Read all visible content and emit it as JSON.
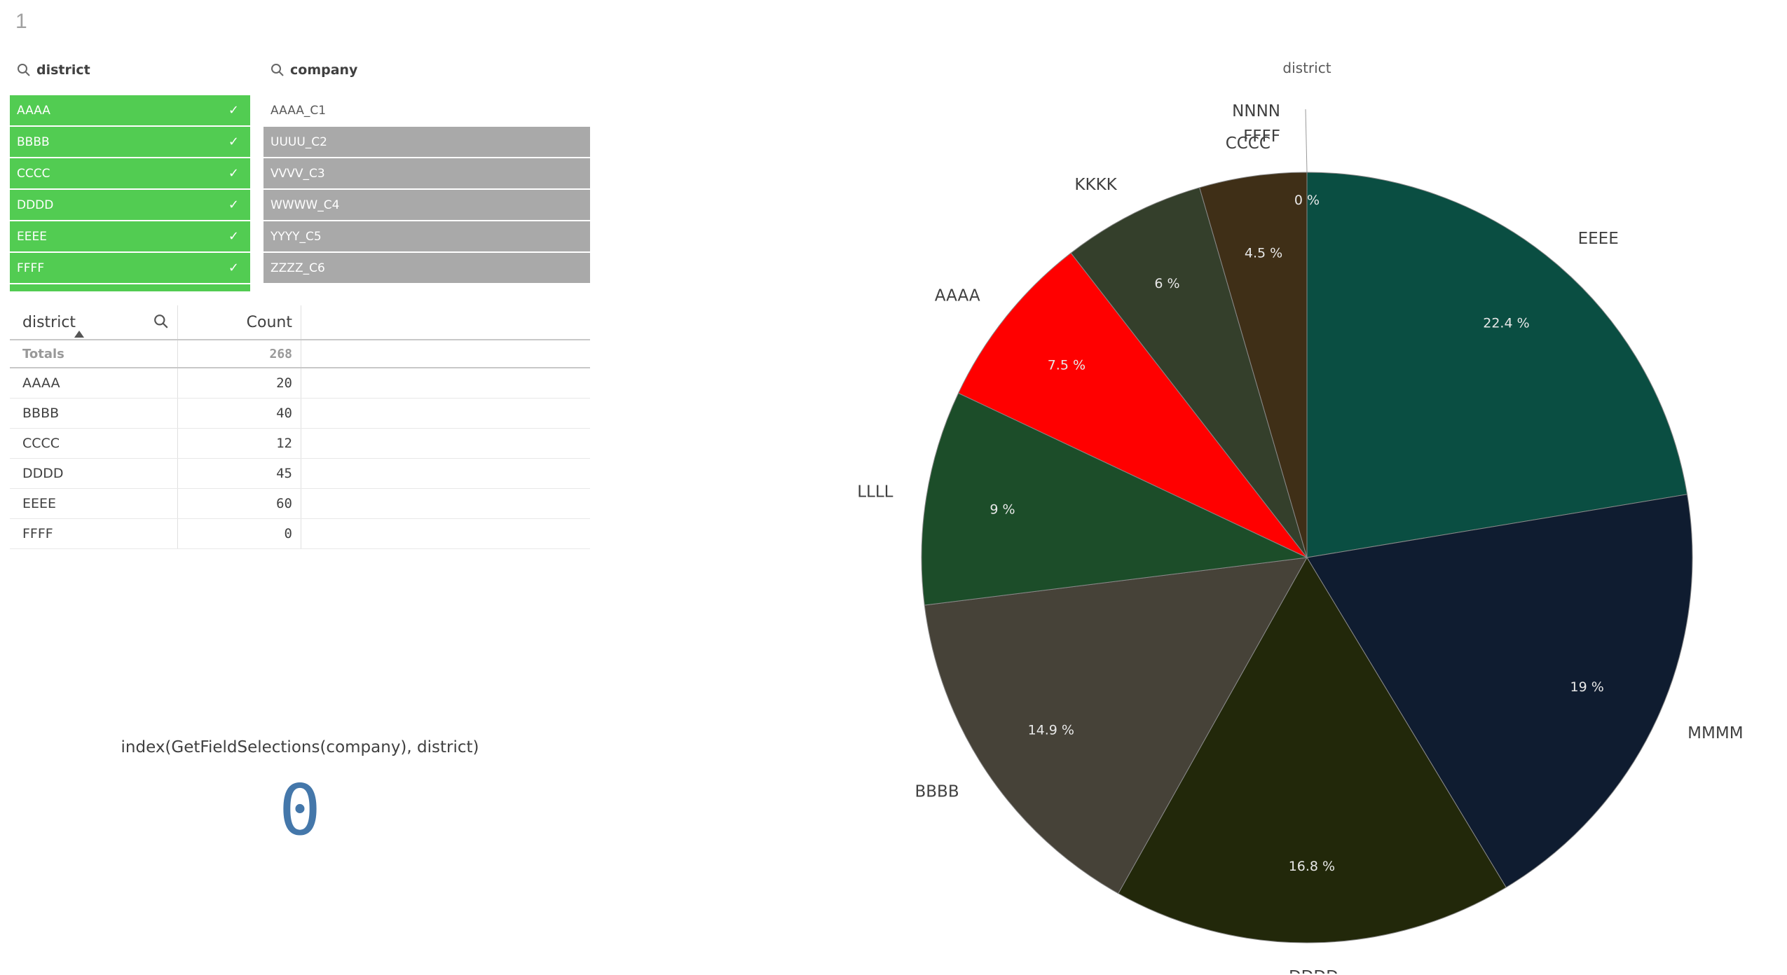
{
  "sheet": {
    "number": "1"
  },
  "district_filter": {
    "title": "district",
    "items": [
      {
        "label": "AAAA",
        "state": "selected"
      },
      {
        "label": "BBBB",
        "state": "selected"
      },
      {
        "label": "CCCC",
        "state": "selected"
      },
      {
        "label": "DDDD",
        "state": "selected"
      },
      {
        "label": "EEEE",
        "state": "selected"
      },
      {
        "label": "FFFF",
        "state": "selected"
      }
    ]
  },
  "company_filter": {
    "title": "company",
    "items": [
      {
        "label": "AAAA_C1",
        "state": "possible"
      },
      {
        "label": "UUUU_C2",
        "state": "alternative"
      },
      {
        "label": "VVVV_C3",
        "state": "alternative"
      },
      {
        "label": "WWWW_C4",
        "state": "alternative"
      },
      {
        "label": "YYYY_C5",
        "state": "alternative"
      },
      {
        "label": "ZZZZ_C6",
        "state": "alternative"
      }
    ]
  },
  "table": {
    "headers": [
      "district",
      "Count"
    ],
    "totals_label": "Totals",
    "totals_value": "268",
    "rows": [
      {
        "district": "AAAA",
        "count": "20"
      },
      {
        "district": "BBBB",
        "count": "40"
      },
      {
        "district": "CCCC",
        "count": "12"
      },
      {
        "district": "DDDD",
        "count": "45"
      },
      {
        "district": "EEEE",
        "count": "60"
      },
      {
        "district": "FFFF",
        "count": "0"
      }
    ]
  },
  "kpi": {
    "title": "index(GetFieldSelections(company), district)",
    "value": "0"
  },
  "colors": {
    "selected": "#52cc52",
    "alternative": "#a9a9a9",
    "kpi": "#4477aa"
  },
  "chart_data": {
    "type": "pie",
    "title": "district",
    "slices": [
      {
        "label": "EEEE",
        "value": 22.4,
        "pct_label": "22.4 %",
        "color": "#0a4e42"
      },
      {
        "label": "MMMM",
        "value": 19,
        "pct_label": "19 %",
        "color": "#0f1c30"
      },
      {
        "label": "DDDD",
        "value": 16.8,
        "pct_label": "16.8 %",
        "color": "#22280a"
      },
      {
        "label": "BBBB",
        "value": 14.9,
        "pct_label": "14.9 %",
        "color": "#464238"
      },
      {
        "label": "LLLL",
        "value": 9,
        "pct_label": "9 %",
        "color": "#1c4d29"
      },
      {
        "label": "AAAA",
        "value": 7.5,
        "pct_label": "7.5 %",
        "color": "#ff0000"
      },
      {
        "label": "KKKK",
        "value": 6,
        "pct_label": "6 %",
        "color": "#343f2b"
      },
      {
        "label": "CCCC",
        "value": 4.5,
        "pct_label": "4.5 %",
        "color": "#3f2f17"
      },
      {
        "label": "FFFF",
        "value": 0,
        "pct_label": "",
        "color": "#3f2f17"
      },
      {
        "label": "NNNN",
        "value": 0,
        "pct_label": "0 %",
        "color": "#3f2f17"
      }
    ]
  }
}
